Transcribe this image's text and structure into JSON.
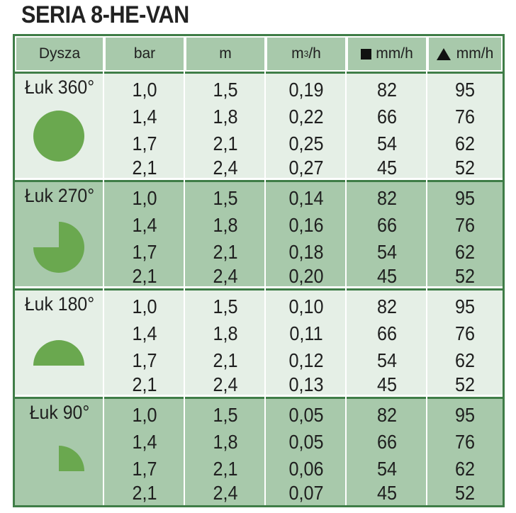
{
  "title": "SERIA 8-HE-VAN",
  "colors": {
    "border": "#3f7d47",
    "header_bg": "#a8c9ab",
    "band_light": "#e5efe6",
    "band_dark": "#a8c9ab",
    "shape_fill": "#6aa84f"
  },
  "header": {
    "nozzle": "Dysza",
    "bar": "bar",
    "m": "m",
    "flow_unit": "m",
    "flow_sup": "3",
    "flow_suffix": "/h",
    "square_rate": "mm/h",
    "square_icon": "square-icon",
    "triangle_rate": "mm/h",
    "triangle_icon": "triangle-icon"
  },
  "groups": [
    {
      "nozzle": "Łuk 360°",
      "shape": "full-circle-icon",
      "rows": [
        [
          "1,0",
          "1,5",
          "0,19",
          "82",
          "95"
        ],
        [
          "1,4",
          "1,8",
          "0,22",
          "66",
          "76"
        ],
        [
          "1,7",
          "2,1",
          "0,25",
          "54",
          "62"
        ],
        [
          "2,1",
          "2,4",
          "0,27",
          "45",
          "52"
        ]
      ]
    },
    {
      "nozzle": "Łuk 270°",
      "shape": "three-quarter-circle-icon",
      "rows": [
        [
          "1,0",
          "1,5",
          "0,14",
          "82",
          "95"
        ],
        [
          "1,4",
          "1,8",
          "0,16",
          "66",
          "76"
        ],
        [
          "1,7",
          "2,1",
          "0,18",
          "54",
          "62"
        ],
        [
          "2,1",
          "2,4",
          "0,20",
          "45",
          "52"
        ]
      ]
    },
    {
      "nozzle": "Łuk 180°",
      "shape": "half-circle-icon",
      "rows": [
        [
          "1,0",
          "1,5",
          "0,10",
          "82",
          "95"
        ],
        [
          "1,4",
          "1,8",
          "0,11",
          "66",
          "76"
        ],
        [
          "1,7",
          "2,1",
          "0,12",
          "54",
          "62"
        ],
        [
          "2,1",
          "2,4",
          "0,13",
          "45",
          "52"
        ]
      ]
    },
    {
      "nozzle": "Łuk 90°",
      "shape": "quarter-circle-icon",
      "rows": [
        [
          "1,0",
          "1,5",
          "0,05",
          "82",
          "95"
        ],
        [
          "1,4",
          "1,8",
          "0,05",
          "66",
          "76"
        ],
        [
          "1,7",
          "2,1",
          "0,06",
          "54",
          "62"
        ],
        [
          "2,1",
          "2,4",
          "0,07",
          "45",
          "52"
        ]
      ]
    }
  ]
}
